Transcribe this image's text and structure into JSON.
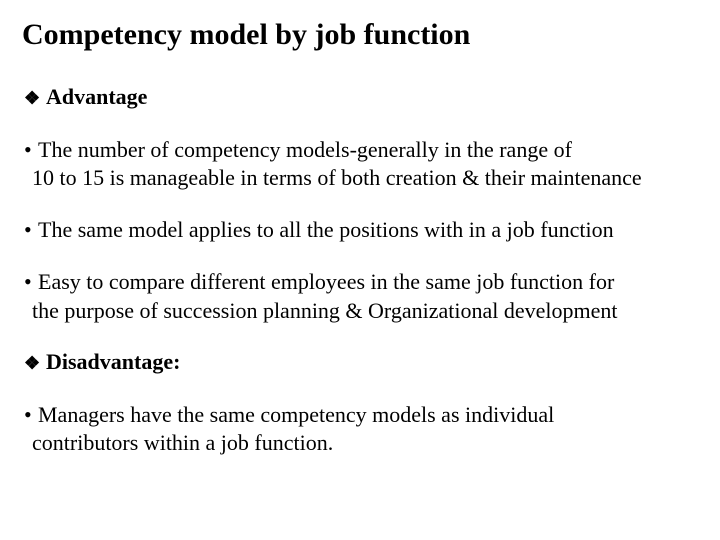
{
  "title": "Competency model by job function",
  "advantage": {
    "heading": "Advantage",
    "items": [
      {
        "line1": "The number of competency models-generally in the range of",
        "line2": "10 to 15 is manageable in terms of both creation & their maintenance"
      },
      {
        "line1": "The same model applies to all the positions with in  a job function"
      },
      {
        "line1": "Easy to compare different employees in the same job function for",
        "line2": "the purpose of succession planning & Organizational development"
      }
    ]
  },
  "disadvantage": {
    "heading": "Disadvantage:",
    "items": [
      {
        "line1": "Managers have the same competency models as individual",
        "line2": "contributors within a job function."
      }
    ]
  },
  "glyphs": {
    "diamond": "❖",
    "bullet": "•"
  },
  "style": {
    "title_fontsize": 30,
    "body_fontsize": 22,
    "text_color": "#000000",
    "background_color": "#ffffff",
    "font_family": "Times New Roman"
  }
}
